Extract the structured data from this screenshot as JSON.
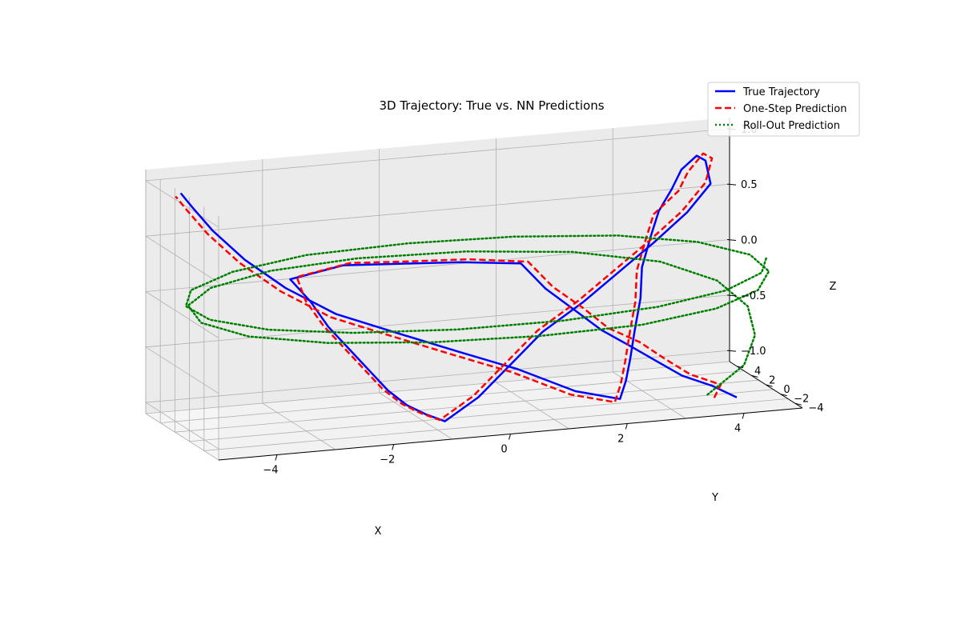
{
  "chart_data": {
    "type": "line",
    "projection": "3d",
    "title": "3D Trajectory: True vs. NN Predictions",
    "xlabel": "X",
    "ylabel": "Y",
    "zlabel": "Z",
    "xlim": [
      -5,
      5
    ],
    "ylim": [
      -5,
      5
    ],
    "zlim": [
      -1.1,
      1.1
    ],
    "xticks": [
      -4,
      -2,
      0,
      2,
      4
    ],
    "yticks": [
      -4,
      -2,
      0,
      2,
      4
    ],
    "zticks": [
      -1.0,
      -0.5,
      0.0,
      0.5,
      1.0
    ],
    "grid": true,
    "legend_position": "top-right",
    "series": [
      {
        "name": "True Trajectory",
        "color": "#0000ff",
        "style": "solid",
        "points": [
          [
            4.0,
            -4.0,
            -1.0
          ],
          [
            3.7,
            -3.1,
            -0.92
          ],
          [
            3.3,
            -2.1,
            -0.85
          ],
          [
            3.0,
            -1.1,
            -0.75
          ],
          [
            2.7,
            -0.1,
            -0.65
          ],
          [
            2.3,
            1.0,
            -0.52
          ],
          [
            2.0,
            2.0,
            -0.38
          ],
          [
            1.6,
            3.0,
            -0.2
          ],
          [
            1.3,
            4.0,
            0.0
          ],
          [
            0.3,
            4.2,
            0.05
          ],
          [
            -0.8,
            3.9,
            0.1
          ],
          [
            -1.8,
            3.5,
            0.15
          ],
          [
            -2.8,
            2.8,
            0.1
          ],
          [
            -2.5,
            2.4,
            -0.1
          ],
          [
            -2.3,
            1.6,
            -0.3
          ],
          [
            -2.0,
            1.0,
            -0.5
          ],
          [
            -1.8,
            0.0,
            -0.65
          ],
          [
            -1.6,
            -1.0,
            -0.8
          ],
          [
            -1.4,
            -2.0,
            -0.9
          ],
          [
            -1.2,
            -3.0,
            -0.95
          ],
          [
            -1.0,
            -4.0,
            -0.98
          ],
          [
            -0.4,
            -3.8,
            -0.8
          ],
          [
            0.2,
            -3.4,
            -0.55
          ],
          [
            0.8,
            -3.0,
            -0.3
          ],
          [
            1.6,
            -2.2,
            -0.1
          ],
          [
            2.3,
            -1.4,
            0.1
          ],
          [
            3.0,
            -0.6,
            0.3
          ],
          [
            3.7,
            0.4,
            0.5
          ],
          [
            4.2,
            1.2,
            0.7
          ],
          [
            4.2,
            1.9,
            0.88
          ],
          [
            4.0,
            1.5,
            0.95
          ],
          [
            3.7,
            1.2,
            0.85
          ],
          [
            3.5,
            0.9,
            0.7
          ],
          [
            3.3,
            1.1,
            0.5
          ],
          [
            3.1,
            0.6,
            0.3
          ],
          [
            2.9,
            0.2,
            0.05
          ],
          [
            2.8,
            -0.4,
            -0.2
          ],
          [
            2.6,
            -1.2,
            -0.45
          ],
          [
            2.4,
            -2.2,
            -0.65
          ],
          [
            2.2,
            -3.2,
            -0.8
          ],
          [
            2.0,
            -4.0,
            -0.92
          ],
          [
            1.2,
            -4.3,
            -0.8
          ],
          [
            0.2,
            -4.4,
            -0.55
          ],
          [
            -0.8,
            -4.3,
            -0.35
          ],
          [
            -1.8,
            -4.0,
            -0.15
          ],
          [
            -2.8,
            -3.5,
            0.05
          ],
          [
            -3.6,
            -3.0,
            0.3
          ],
          [
            -4.2,
            -2.2,
            0.55
          ],
          [
            -4.6,
            -1.0,
            0.78
          ],
          [
            -4.8,
            0.2,
            0.95
          ],
          [
            -4.9,
            1.0,
            1.05
          ]
        ]
      },
      {
        "name": "One-Step Prediction",
        "color": "#ff0000",
        "style": "dashed",
        "points": [
          [
            3.6,
            -4.1,
            -0.98
          ],
          [
            3.8,
            -3.4,
            -0.9
          ],
          [
            3.4,
            -2.4,
            -0.83
          ],
          [
            3.1,
            -1.3,
            -0.72
          ],
          [
            2.8,
            -0.3,
            -0.6
          ],
          [
            2.4,
            0.8,
            -0.5
          ],
          [
            2.1,
            1.8,
            -0.35
          ],
          [
            1.7,
            2.8,
            -0.18
          ],
          [
            1.4,
            3.8,
            0.02
          ],
          [
            0.4,
            4.0,
            0.08
          ],
          [
            -0.7,
            3.8,
            0.12
          ],
          [
            -1.7,
            3.4,
            0.17
          ],
          [
            -2.7,
            2.7,
            0.12
          ],
          [
            -2.6,
            2.3,
            -0.08
          ],
          [
            -2.4,
            1.5,
            -0.28
          ],
          [
            -2.1,
            0.9,
            -0.48
          ],
          [
            -1.9,
            -0.1,
            -0.63
          ],
          [
            -1.7,
            -1.1,
            -0.78
          ],
          [
            -1.5,
            -2.1,
            -0.88
          ],
          [
            -1.3,
            -3.1,
            -0.93
          ],
          [
            -1.1,
            -4.1,
            -0.96
          ],
          [
            -0.5,
            -3.9,
            -0.78
          ],
          [
            0.1,
            -3.5,
            -0.53
          ],
          [
            0.7,
            -3.1,
            -0.28
          ],
          [
            1.5,
            -2.3,
            -0.08
          ],
          [
            2.2,
            -1.5,
            0.12
          ],
          [
            2.9,
            -0.7,
            0.32
          ],
          [
            3.6,
            0.3,
            0.52
          ],
          [
            4.1,
            1.1,
            0.72
          ],
          [
            4.3,
            1.8,
            0.9
          ],
          [
            4.1,
            1.4,
            0.97
          ],
          [
            3.8,
            1.1,
            0.83
          ],
          [
            3.6,
            0.8,
            0.68
          ],
          [
            3.2,
            1.0,
            0.48
          ],
          [
            3.0,
            0.5,
            0.28
          ],
          [
            2.8,
            0.1,
            0.03
          ],
          [
            2.7,
            -0.5,
            -0.22
          ],
          [
            2.5,
            -1.3,
            -0.47
          ],
          [
            2.3,
            -2.3,
            -0.67
          ],
          [
            2.1,
            -3.3,
            -0.82
          ],
          [
            1.9,
            -4.1,
            -0.94
          ],
          [
            1.1,
            -4.4,
            -0.82
          ],
          [
            0.1,
            -4.5,
            -0.57
          ],
          [
            -0.9,
            -4.4,
            -0.37
          ],
          [
            -1.9,
            -4.1,
            -0.17
          ],
          [
            -2.9,
            -3.6,
            0.03
          ],
          [
            -3.7,
            -3.1,
            0.28
          ],
          [
            -4.3,
            -2.3,
            0.53
          ],
          [
            -4.7,
            -1.1,
            0.76
          ],
          [
            -4.9,
            0.1,
            0.93
          ],
          [
            -5.0,
            0.9,
            1.03
          ]
        ]
      },
      {
        "name": "Roll-Out Prediction",
        "color": "#008000",
        "style": "dotted",
        "points": [
          [
            3.5,
            -4.0,
            -0.95
          ],
          [
            4.3,
            -2.6,
            -0.78
          ],
          [
            4.7,
            -0.9,
            -0.6
          ],
          [
            4.8,
            0.9,
            -0.42
          ],
          [
            4.5,
            2.7,
            -0.25
          ],
          [
            3.7,
            4.1,
            -0.1
          ],
          [
            2.3,
            4.9,
            0.02
          ],
          [
            0.5,
            5.1,
            0.1
          ],
          [
            -1.4,
            4.8,
            0.14
          ],
          [
            -3.0,
            3.9,
            0.14
          ],
          [
            -4.2,
            2.5,
            0.1
          ],
          [
            -4.8,
            0.8,
            0.04
          ],
          [
            -4.8,
            -1.0,
            -0.04
          ],
          [
            -4.2,
            -2.7,
            -0.12
          ],
          [
            -3.0,
            -4.0,
            -0.18
          ],
          [
            -1.3,
            -4.8,
            -0.22
          ],
          [
            0.5,
            -5.0,
            -0.24
          ],
          [
            2.3,
            -4.6,
            -0.24
          ],
          [
            3.7,
            -3.6,
            -0.2
          ],
          [
            4.6,
            -2.1,
            -0.14
          ],
          [
            5.0,
            -0.4,
            -0.06
          ],
          [
            4.9,
            1.4,
            0.02
          ],
          [
            4.2,
            3.0,
            0.1
          ],
          [
            3.0,
            4.3,
            0.16
          ],
          [
            1.3,
            5.0,
            0.2
          ],
          [
            -0.5,
            5.1,
            0.22
          ],
          [
            -2.3,
            4.6,
            0.22
          ],
          [
            -3.7,
            3.5,
            0.18
          ],
          [
            -4.6,
            2.0,
            0.12
          ],
          [
            -4.9,
            0.3,
            0.06
          ],
          [
            -4.7,
            -1.4,
            0.0
          ],
          [
            -3.9,
            -3.0,
            -0.06
          ],
          [
            -2.6,
            -4.2,
            -0.1
          ],
          [
            -0.9,
            -4.9,
            -0.12
          ],
          [
            0.9,
            -5.0,
            -0.12
          ],
          [
            2.6,
            -4.4,
            -0.1
          ],
          [
            3.9,
            -3.3,
            -0.06
          ],
          [
            4.7,
            -1.8,
            0.0
          ],
          [
            5.0,
            -0.1,
            0.06
          ]
        ]
      }
    ]
  }
}
